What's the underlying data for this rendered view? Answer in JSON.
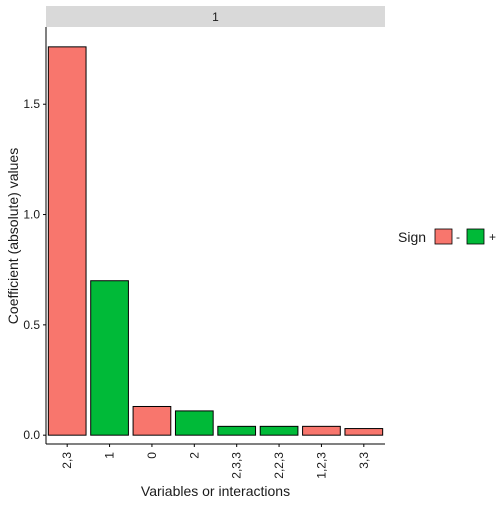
{
  "chart_data": {
    "type": "bar",
    "facet_label": "1",
    "categories": [
      "2,3",
      "1",
      "0",
      "2",
      "2,3,3",
      "2,2,3",
      "1,2,3",
      "3,3"
    ],
    "values": [
      1.76,
      0.7,
      0.13,
      0.11,
      0.04,
      0.04,
      0.04,
      0.03
    ],
    "signs": [
      "-",
      "+",
      "-",
      "+",
      "+",
      "+",
      "-",
      "-"
    ],
    "xlabel": "Variables or interactions",
    "ylabel": "Coefficient (absolute) values",
    "ylim": [
      -0.04,
      1.85
    ],
    "yticks": [
      0.0,
      0.5,
      1.0,
      1.5
    ],
    "ytick_labels": [
      "0.0",
      "0.5",
      "1.0",
      "1.5"
    ],
    "grid": false,
    "legend": {
      "title": "Sign",
      "placement": "right",
      "entries": [
        {
          "label": "-",
          "color": "#F8766D"
        },
        {
          "label": "+",
          "color": "#00BA38"
        }
      ]
    },
    "colors": {
      "negative": "#F8766D",
      "positive": "#00BA38",
      "strip": "#D9D9D9"
    }
  }
}
